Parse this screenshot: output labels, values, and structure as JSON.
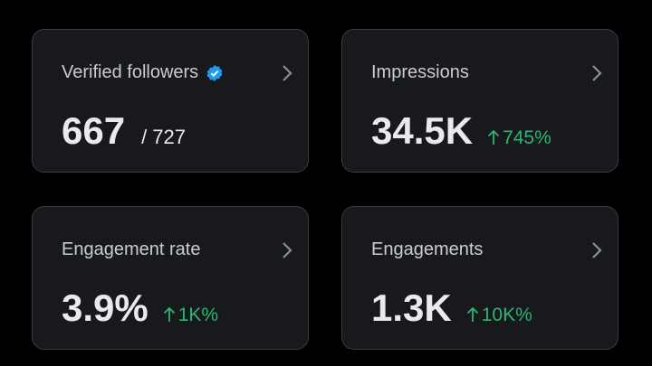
{
  "cards": [
    {
      "title": "Verified followers",
      "value": "667",
      "total": "/ 727"
    },
    {
      "title": "Impressions",
      "value": "34.5K",
      "change": "745%"
    },
    {
      "title": "Engagement rate",
      "value": "3.9%",
      "change": "1K%"
    },
    {
      "title": "Engagements",
      "value": "1.3K",
      "change": "10K%"
    }
  ]
}
